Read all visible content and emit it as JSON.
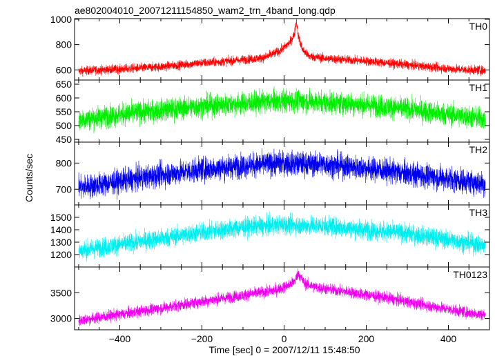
{
  "chart_data": {
    "type": "line",
    "title": "ae802004010_20071211154850_wam2_trn_4band_long.qdp",
    "xlabel": "Time [sec] 0 = 2007/12/11 15:48:50",
    "ylabel": "Counts/sec",
    "xlim": [
      -510,
      500
    ],
    "x_ticks": [
      "−400",
      "−200",
      "0",
      "200",
      "400"
    ],
    "x_tick_values": [
      -400,
      -200,
      0,
      200,
      400
    ],
    "grid": false,
    "panels": [
      {
        "name": "TH0",
        "color": "#ff0000",
        "ylim": [
          520,
          1005
        ],
        "y_ticks": [
          "1000",
          "800",
          "600"
        ],
        "y_tick_values": [
          1000,
          800,
          600
        ],
        "x": [
          -500,
          -450,
          -400,
          -350,
          -300,
          -250,
          -200,
          -150,
          -100,
          -50,
          -10,
          15,
          25,
          30,
          35,
          45,
          60,
          100,
          150,
          200,
          250,
          300,
          350,
          400,
          450,
          490
        ],
        "y": [
          590,
          600,
          605,
          615,
          625,
          640,
          655,
          665,
          680,
          695,
          750,
          820,
          880,
          990,
          860,
          760,
          710,
          690,
          680,
          670,
          655,
          640,
          625,
          610,
          600,
          595
        ],
        "noise": 35
      },
      {
        "name": "TH1",
        "color": "#00ee00",
        "ylim": [
          440,
          665
        ],
        "y_ticks": [
          "650",
          "600",
          "550",
          "500",
          "450"
        ],
        "y_tick_values": [
          650,
          600,
          550,
          500,
          450
        ],
        "x": [
          -500,
          -400,
          -300,
          -200,
          -100,
          0,
          100,
          200,
          300,
          400,
          490
        ],
        "y": [
          520,
          540,
          555,
          570,
          580,
          590,
          585,
          575,
          560,
          540,
          525
        ],
        "noise": 40
      },
      {
        "name": "TH2",
        "color": "#0000ee",
        "ylim": [
          640,
          880
        ],
        "y_ticks": [
          "800",
          "700"
        ],
        "y_tick_values": [
          800,
          700
        ],
        "x": [
          -500,
          -400,
          -300,
          -200,
          -100,
          0,
          100,
          200,
          300,
          400,
          490
        ],
        "y": [
          705,
          730,
          755,
          775,
          790,
          800,
          795,
          780,
          760,
          740,
          720
        ],
        "noise": 45
      },
      {
        "name": "TH3",
        "color": "#00eeee",
        "ylim": [
          1100,
          1600
        ],
        "y_ticks": [
          "1500",
          "1400",
          "1300",
          "1200"
        ],
        "y_tick_values": [
          1500,
          1400,
          1300,
          1200
        ],
        "x": [
          -500,
          -400,
          -300,
          -200,
          -100,
          0,
          100,
          200,
          300,
          400,
          490
        ],
        "y": [
          1230,
          1280,
          1330,
          1380,
          1420,
          1440,
          1430,
          1400,
          1370,
          1320,
          1270
        ],
        "noise": 75
      },
      {
        "name": "TH0123",
        "color": "#ee00ee",
        "ylim": [
          2780,
          4000
        ],
        "y_ticks": [
          "3500",
          "3000"
        ],
        "y_tick_values": [
          3500,
          3000
        ],
        "x": [
          -500,
          -450,
          -400,
          -300,
          -200,
          -100,
          -20,
          10,
          25,
          35,
          50,
          80,
          150,
          250,
          350,
          450,
          490
        ],
        "y": [
          2960,
          3020,
          3080,
          3200,
          3330,
          3450,
          3550,
          3640,
          3720,
          3880,
          3680,
          3600,
          3520,
          3400,
          3250,
          3110,
          3070
        ],
        "noise": 110
      }
    ]
  }
}
